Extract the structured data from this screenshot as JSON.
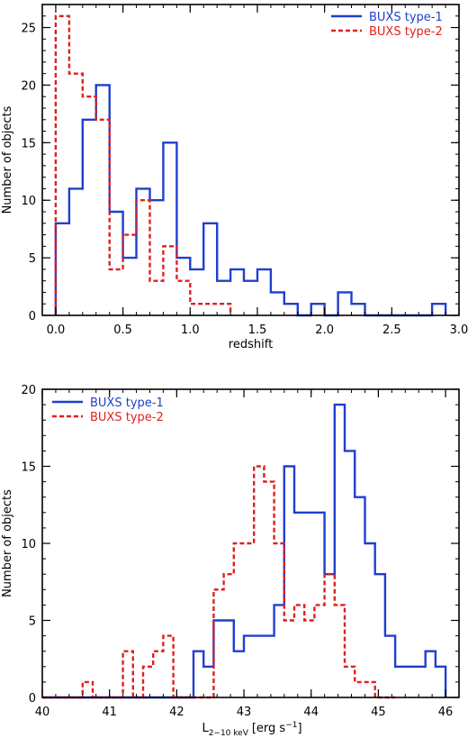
{
  "chart_data": [
    {
      "type": "histogram",
      "xlabel": "redshift",
      "ylabel": "Number of objects",
      "xlim": [
        -0.1,
        3.0
      ],
      "ylim": [
        0,
        27
      ],
      "bin_width": 0.1,
      "x_ticks": [
        "0.0",
        "0.5",
        "1.0",
        "1.5",
        "2.0",
        "2.5",
        "3.0"
      ],
      "x_tick_values": [
        0,
        0.5,
        1.0,
        1.5,
        2.0,
        2.5,
        3.0
      ],
      "y_ticks": [
        "0",
        "5",
        "10",
        "15",
        "20",
        "25"
      ],
      "y_tick_values": [
        0,
        5,
        10,
        15,
        20,
        25
      ],
      "legend_position": "top-right",
      "series": [
        {
          "name": "BUXS type-1",
          "color": "#1f3fcf",
          "style": "solid",
          "bin_edges": [
            0,
            0.1,
            0.2,
            0.3,
            0.4,
            0.5,
            0.6,
            0.7,
            0.8,
            0.9,
            1.0,
            1.1,
            1.2,
            1.3,
            1.4,
            1.5,
            1.6,
            1.7,
            1.8,
            1.9,
            2.0,
            2.1,
            2.2,
            2.3,
            2.4,
            2.5,
            2.6,
            2.7,
            2.8,
            2.9
          ],
          "counts": [
            8,
            11,
            17,
            20,
            9,
            5,
            11,
            10,
            15,
            5,
            4,
            8,
            3,
            4,
            3,
            4,
            2,
            1,
            0,
            1,
            0,
            2,
            1,
            0,
            0,
            0,
            0,
            0,
            1
          ]
        },
        {
          "name": "BUXS type-2",
          "color": "#e02020",
          "style": "dashed",
          "bin_edges": [
            0,
            0.1,
            0.2,
            0.3,
            0.4,
            0.5,
            0.6,
            0.7,
            0.8,
            0.9,
            1.0,
            1.1,
            1.2,
            1.3
          ],
          "counts": [
            26,
            21,
            19,
            17,
            4,
            7,
            10,
            3,
            6,
            3,
            1,
            1,
            1
          ]
        }
      ]
    },
    {
      "type": "histogram",
      "xlabel_main": "L",
      "xlabel_sub": "2−10 keV",
      "xlabel_unit": "[erg s",
      "xlabel_sup": "−1",
      "xlabel_close": "]",
      "ylabel": "Number of objects",
      "xlim": [
        40.0,
        46.2
      ],
      "ylim": [
        0,
        20
      ],
      "bin_width": 0.15,
      "x_ticks": [
        "40",
        "41",
        "42",
        "43",
        "44",
        "45",
        "46"
      ],
      "x_tick_values": [
        40,
        41,
        42,
        43,
        44,
        45,
        46
      ],
      "y_ticks": [
        "0",
        "5",
        "10",
        "15",
        "20"
      ],
      "y_tick_values": [
        0,
        5,
        10,
        15,
        20
      ],
      "legend_position": "top-left",
      "series": [
        {
          "name": "BUXS type-1",
          "color": "#1f3fcf",
          "style": "solid",
          "bin_edges": [
            40.0,
            40.15,
            40.3,
            40.45,
            40.6,
            40.75,
            40.9,
            41.05,
            41.2,
            41.35,
            41.5,
            41.65,
            41.8,
            41.95,
            42.1,
            42.25,
            42.4,
            42.55,
            42.7,
            42.85,
            43.0,
            43.15,
            43.3,
            43.45,
            43.6,
            43.75,
            43.9,
            44.05,
            44.2,
            44.35,
            44.5,
            44.65,
            44.8,
            44.95,
            45.1,
            45.25,
            45.4,
            45.55,
            45.7,
            45.85,
            46.0
          ],
          "counts": [
            0,
            0,
            0,
            0,
            0,
            0,
            0,
            0,
            0,
            0,
            0,
            0,
            0,
            0,
            0,
            3,
            2,
            5,
            5,
            3,
            4,
            4,
            4,
            6,
            15,
            12,
            12,
            12,
            8,
            19,
            16,
            13,
            10,
            8,
            4,
            2,
            2,
            2,
            3,
            2
          ]
        },
        {
          "name": "BUXS type-2",
          "color": "#e02020",
          "style": "dashed",
          "bin_edges": [
            40.0,
            40.15,
            40.3,
            40.45,
            40.6,
            40.75,
            40.9,
            41.05,
            41.2,
            41.35,
            41.5,
            41.65,
            41.8,
            41.95,
            42.1,
            42.25,
            42.4,
            42.55,
            42.7,
            42.85,
            43.0,
            43.15,
            43.3,
            43.45,
            43.6,
            43.75,
            43.9,
            44.05,
            44.2,
            44.35,
            44.5,
            44.65,
            44.8,
            44.95,
            45.1,
            45.25
          ],
          "counts": [
            0,
            0,
            0,
            0,
            1,
            0,
            0,
            0,
            3,
            0,
            2,
            3,
            4,
            0,
            0,
            0,
            0,
            7,
            8,
            10,
            10,
            15,
            14,
            10,
            5,
            6,
            5,
            6,
            8,
            6,
            2,
            1,
            1,
            0,
            0
          ]
        }
      ]
    }
  ]
}
